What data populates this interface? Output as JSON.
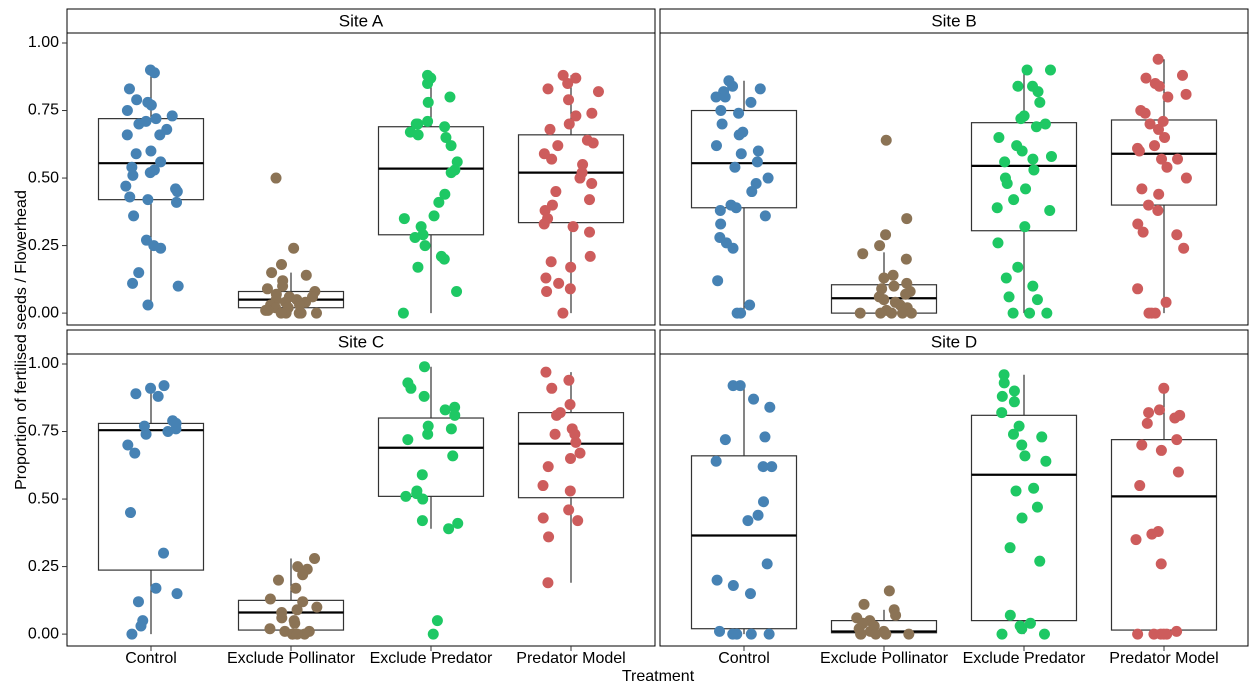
{
  "axis_labels": {
    "x": "Treatment",
    "y": "Proportion of fertilised seeds / Flowerhead"
  },
  "categories": [
    "Control",
    "Exclude Pollinator",
    "Exclude Predator",
    "Predator Model"
  ],
  "colors": [
    "#4682b4",
    "#8b7355",
    "#1ec864",
    "#cd5c5c"
  ],
  "chart_data": [
    {
      "type": "box",
      "title": "Site A",
      "ylim": [
        -0.044,
        1.037
      ],
      "yticks": [
        {
          "value": 0,
          "label": "0.00"
        },
        {
          "value": 0.25,
          "label": "0.25"
        },
        {
          "value": 0.5,
          "label": "0.50"
        },
        {
          "value": 0.75,
          "label": "0.75"
        },
        {
          "value": 1,
          "label": "1.00"
        }
      ],
      "boxes": [
        {
          "whisker_low": 0.03,
          "q1": 0.42,
          "median": 0.555,
          "q3": 0.72,
          "whisker_high": 0.9
        },
        {
          "whisker_low": 0,
          "q1": 0.02,
          "median": 0.05,
          "q3": 0.08,
          "whisker_high": 0.15
        },
        {
          "whisker_low": 0,
          "q1": 0.29,
          "median": 0.535,
          "q3": 0.69,
          "whisker_high": 0.88
        },
        {
          "whisker_low": 0,
          "q1": 0.335,
          "median": 0.52,
          "q3": 0.66,
          "whisker_high": 0.88
        }
      ],
      "points": [
        [
          0.9,
          0.89,
          0.83,
          0.79,
          0.78,
          0.77,
          0.75,
          0.73,
          0.72,
          0.71,
          0.7,
          0.68,
          0.66,
          0.66,
          0.6,
          0.59,
          0.56,
          0.54,
          0.53,
          0.52,
          0.51,
          0.47,
          0.46,
          0.45,
          0.43,
          0.42,
          0.41,
          0.36,
          0.27,
          0.25,
          0.24,
          0.15,
          0.11,
          0.1,
          0.03
        ],
        [
          0.5,
          0.24,
          0.18,
          0.15,
          0.14,
          0.12,
          0.1,
          0.09,
          0.08,
          0.07,
          0.06,
          0.06,
          0.05,
          0.05,
          0.04,
          0.04,
          0.03,
          0.03,
          0.02,
          0.02,
          0.01,
          0.01,
          0,
          0,
          0,
          0,
          0
        ],
        [
          0.88,
          0.87,
          0.85,
          0.8,
          0.78,
          0.71,
          0.7,
          0.7,
          0.69,
          0.67,
          0.66,
          0.65,
          0.62,
          0.56,
          0.53,
          0.52,
          0.44,
          0.41,
          0.36,
          0.35,
          0.32,
          0.29,
          0.28,
          0.25,
          0.21,
          0.2,
          0.17,
          0.08,
          0
        ],
        [
          0.88,
          0.87,
          0.85,
          0.83,
          0.82,
          0.79,
          0.74,
          0.73,
          0.7,
          0.68,
          0.64,
          0.63,
          0.62,
          0.59,
          0.57,
          0.55,
          0.52,
          0.5,
          0.48,
          0.45,
          0.42,
          0.4,
          0.38,
          0.35,
          0.33,
          0.32,
          0.3,
          0.21,
          0.19,
          0.17,
          0.13,
          0.11,
          0.09,
          0.08,
          0
        ]
      ]
    },
    {
      "type": "box",
      "title": "Site B",
      "ylim": [
        -0.044,
        1.037
      ],
      "boxes": [
        {
          "whisker_low": 0,
          "q1": 0.39,
          "median": 0.555,
          "q3": 0.75,
          "whisker_high": 0.86
        },
        {
          "whisker_low": 0,
          "q1": 0,
          "median": 0.055,
          "q3": 0.105,
          "whisker_high": 0.225
        },
        {
          "whisker_low": 0,
          "q1": 0.305,
          "median": 0.545,
          "q3": 0.705,
          "whisker_high": 0.9
        },
        {
          "whisker_low": 0,
          "q1": 0.4,
          "median": 0.59,
          "q3": 0.715,
          "whisker_high": 0.94
        }
      ],
      "points": [
        [
          0.86,
          0.84,
          0.83,
          0.82,
          0.8,
          0.8,
          0.78,
          0.75,
          0.74,
          0.7,
          0.67,
          0.66,
          0.62,
          0.6,
          0.59,
          0.56,
          0.54,
          0.5,
          0.48,
          0.45,
          0.4,
          0.39,
          0.38,
          0.36,
          0.33,
          0.28,
          0.26,
          0.24,
          0.12,
          0.03,
          0,
          0
        ],
        [
          0.64,
          0.35,
          0.29,
          0.25,
          0.22,
          0.2,
          0.14,
          0.13,
          0.11,
          0.1,
          0.09,
          0.08,
          0.07,
          0.06,
          0.05,
          0.04,
          0.03,
          0.02,
          0.01,
          0,
          0,
          0,
          0,
          0
        ],
        [
          0.9,
          0.9,
          0.84,
          0.84,
          0.82,
          0.78,
          0.73,
          0.72,
          0.7,
          0.69,
          0.65,
          0.62,
          0.6,
          0.58,
          0.57,
          0.56,
          0.53,
          0.5,
          0.48,
          0.46,
          0.42,
          0.39,
          0.38,
          0.32,
          0.26,
          0.17,
          0.13,
          0.1,
          0.06,
          0.05,
          0,
          0,
          0
        ],
        [
          0.94,
          0.88,
          0.87,
          0.85,
          0.84,
          0.81,
          0.8,
          0.75,
          0.74,
          0.71,
          0.7,
          0.68,
          0.65,
          0.62,
          0.61,
          0.6,
          0.57,
          0.57,
          0.54,
          0.5,
          0.46,
          0.44,
          0.4,
          0.38,
          0.33,
          0.3,
          0.29,
          0.24,
          0.09,
          0.04,
          0,
          0,
          0
        ]
      ]
    },
    {
      "type": "box",
      "title": "Site C",
      "ylim": [
        -0.044,
        1.037
      ],
      "yticks": [
        {
          "value": 0,
          "label": "0.00"
        },
        {
          "value": 0.25,
          "label": "0.25"
        },
        {
          "value": 0.5,
          "label": "0.50"
        },
        {
          "value": 0.75,
          "label": "0.75"
        },
        {
          "value": 1,
          "label": "1.00"
        }
      ],
      "boxes": [
        {
          "whisker_low": 0,
          "q1": 0.237,
          "median": 0.755,
          "q3": 0.78,
          "whisker_high": 0.92
        },
        {
          "whisker_low": 0,
          "q1": 0.015,
          "median": 0.08,
          "q3": 0.125,
          "whisker_high": 0.28
        },
        {
          "whisker_low": 0.39,
          "q1": 0.51,
          "median": 0.69,
          "q3": 0.8,
          "whisker_high": 0.99
        },
        {
          "whisker_low": 0.19,
          "q1": 0.505,
          "median": 0.705,
          "q3": 0.82,
          "whisker_high": 0.97
        }
      ],
      "points": [
        [
          0.92,
          0.91,
          0.89,
          0.88,
          0.79,
          0.78,
          0.77,
          0.76,
          0.75,
          0.74,
          0.7,
          0.67,
          0.45,
          0.3,
          0.17,
          0.15,
          0.12,
          0.05,
          0.03,
          0
        ],
        [
          0.28,
          0.25,
          0.24,
          0.22,
          0.2,
          0.17,
          0.13,
          0.12,
          0.1,
          0.09,
          0.08,
          0.06,
          0.05,
          0.04,
          0.02,
          0.01,
          0.01,
          0,
          0,
          0,
          0
        ],
        [
          0.99,
          0.93,
          0.91,
          0.88,
          0.84,
          0.83,
          0.81,
          0.77,
          0.76,
          0.74,
          0.72,
          0.66,
          0.59,
          0.53,
          0.52,
          0.51,
          0.5,
          0.42,
          0.41,
          0.39,
          0.05,
          0
        ],
        [
          0.97,
          0.94,
          0.91,
          0.85,
          0.82,
          0.81,
          0.76,
          0.74,
          0.74,
          0.71,
          0.67,
          0.65,
          0.62,
          0.55,
          0.53,
          0.46,
          0.43,
          0.42,
          0.36,
          0.19
        ]
      ]
    },
    {
      "type": "box",
      "title": "Site D",
      "ylim": [
        -0.044,
        1.037
      ],
      "boxes": [
        {
          "whisker_low": 0,
          "q1": 0.02,
          "median": 0.365,
          "q3": 0.66,
          "whisker_high": 0.92
        },
        {
          "whisker_low": 0,
          "q1": 0.005,
          "median": 0.01,
          "q3": 0.05,
          "whisker_high": 0.09
        },
        {
          "whisker_low": 0,
          "q1": 0.05,
          "median": 0.59,
          "q3": 0.81,
          "whisker_high": 0.96
        },
        {
          "whisker_low": 0,
          "q1": 0.015,
          "median": 0.51,
          "q3": 0.72,
          "whisker_high": 0.91
        }
      ],
      "points": [
        [
          0.92,
          0.92,
          0.87,
          0.84,
          0.73,
          0.72,
          0.64,
          0.62,
          0.62,
          0.49,
          0.44,
          0.42,
          0.26,
          0.2,
          0.18,
          0.15,
          0.01,
          0,
          0,
          0,
          0
        ],
        [
          0.16,
          0.11,
          0.09,
          0.07,
          0.06,
          0.05,
          0.04,
          0.03,
          0.02,
          0.01,
          0.01,
          0,
          0,
          0,
          0,
          0,
          0
        ],
        [
          0.96,
          0.93,
          0.9,
          0.88,
          0.86,
          0.82,
          0.77,
          0.74,
          0.73,
          0.7,
          0.66,
          0.64,
          0.54,
          0.53,
          0.47,
          0.43,
          0.32,
          0.27,
          0.07,
          0.04,
          0.03,
          0.02,
          0,
          0
        ],
        [
          0.91,
          0.83,
          0.82,
          0.81,
          0.8,
          0.78,
          0.72,
          0.7,
          0.68,
          0.6,
          0.55,
          0.38,
          0.37,
          0.35,
          0.26,
          0.01,
          0,
          0,
          0,
          0,
          0
        ]
      ]
    }
  ]
}
